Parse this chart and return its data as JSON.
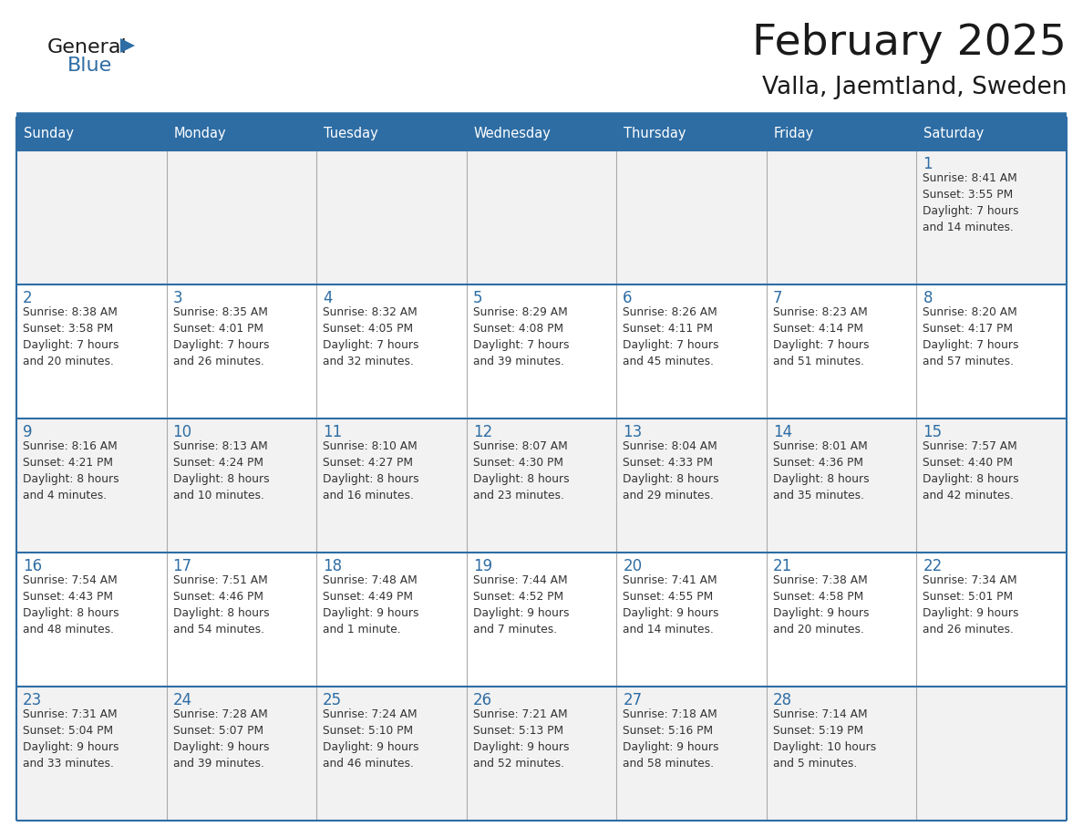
{
  "title": "February 2025",
  "subtitle": "Valla, Jaemtland, Sweden",
  "header_bg": "#2E6DA4",
  "header_text": "#FFFFFF",
  "day_names": [
    "Sunday",
    "Monday",
    "Tuesday",
    "Wednesday",
    "Thursday",
    "Friday",
    "Saturday"
  ],
  "row_bg_light": "#F2F2F2",
  "row_bg_white": "#FFFFFF",
  "cell_border_color": "#AAAAAA",
  "row_border_color": "#2E6DA4",
  "day_number_color": "#2E6DA4",
  "detail_color": "#333333",
  "calendar": [
    [
      null,
      null,
      null,
      null,
      null,
      null,
      {
        "day": 1,
        "sunrise": "8:41 AM",
        "sunset": "3:55 PM",
        "daylight": "7 hours\nand 14 minutes."
      }
    ],
    [
      {
        "day": 2,
        "sunrise": "8:38 AM",
        "sunset": "3:58 PM",
        "daylight": "7 hours\nand 20 minutes."
      },
      {
        "day": 3,
        "sunrise": "8:35 AM",
        "sunset": "4:01 PM",
        "daylight": "7 hours\nand 26 minutes."
      },
      {
        "day": 4,
        "sunrise": "8:32 AM",
        "sunset": "4:05 PM",
        "daylight": "7 hours\nand 32 minutes."
      },
      {
        "day": 5,
        "sunrise": "8:29 AM",
        "sunset": "4:08 PM",
        "daylight": "7 hours\nand 39 minutes."
      },
      {
        "day": 6,
        "sunrise": "8:26 AM",
        "sunset": "4:11 PM",
        "daylight": "7 hours\nand 45 minutes."
      },
      {
        "day": 7,
        "sunrise": "8:23 AM",
        "sunset": "4:14 PM",
        "daylight": "7 hours\nand 51 minutes."
      },
      {
        "day": 8,
        "sunrise": "8:20 AM",
        "sunset": "4:17 PM",
        "daylight": "7 hours\nand 57 minutes."
      }
    ],
    [
      {
        "day": 9,
        "sunrise": "8:16 AM",
        "sunset": "4:21 PM",
        "daylight": "8 hours\nand 4 minutes."
      },
      {
        "day": 10,
        "sunrise": "8:13 AM",
        "sunset": "4:24 PM",
        "daylight": "8 hours\nand 10 minutes."
      },
      {
        "day": 11,
        "sunrise": "8:10 AM",
        "sunset": "4:27 PM",
        "daylight": "8 hours\nand 16 minutes."
      },
      {
        "day": 12,
        "sunrise": "8:07 AM",
        "sunset": "4:30 PM",
        "daylight": "8 hours\nand 23 minutes."
      },
      {
        "day": 13,
        "sunrise": "8:04 AM",
        "sunset": "4:33 PM",
        "daylight": "8 hours\nand 29 minutes."
      },
      {
        "day": 14,
        "sunrise": "8:01 AM",
        "sunset": "4:36 PM",
        "daylight": "8 hours\nand 35 minutes."
      },
      {
        "day": 15,
        "sunrise": "7:57 AM",
        "sunset": "4:40 PM",
        "daylight": "8 hours\nand 42 minutes."
      }
    ],
    [
      {
        "day": 16,
        "sunrise": "7:54 AM",
        "sunset": "4:43 PM",
        "daylight": "8 hours\nand 48 minutes."
      },
      {
        "day": 17,
        "sunrise": "7:51 AM",
        "sunset": "4:46 PM",
        "daylight": "8 hours\nand 54 minutes."
      },
      {
        "day": 18,
        "sunrise": "7:48 AM",
        "sunset": "4:49 PM",
        "daylight": "9 hours\nand 1 minute."
      },
      {
        "day": 19,
        "sunrise": "7:44 AM",
        "sunset": "4:52 PM",
        "daylight": "9 hours\nand 7 minutes."
      },
      {
        "day": 20,
        "sunrise": "7:41 AM",
        "sunset": "4:55 PM",
        "daylight": "9 hours\nand 14 minutes."
      },
      {
        "day": 21,
        "sunrise": "7:38 AM",
        "sunset": "4:58 PM",
        "daylight": "9 hours\nand 20 minutes."
      },
      {
        "day": 22,
        "sunrise": "7:34 AM",
        "sunset": "5:01 PM",
        "daylight": "9 hours\nand 26 minutes."
      }
    ],
    [
      {
        "day": 23,
        "sunrise": "7:31 AM",
        "sunset": "5:04 PM",
        "daylight": "9 hours\nand 33 minutes."
      },
      {
        "day": 24,
        "sunrise": "7:28 AM",
        "sunset": "5:07 PM",
        "daylight": "9 hours\nand 39 minutes."
      },
      {
        "day": 25,
        "sunrise": "7:24 AM",
        "sunset": "5:10 PM",
        "daylight": "9 hours\nand 46 minutes."
      },
      {
        "day": 26,
        "sunrise": "7:21 AM",
        "sunset": "5:13 PM",
        "daylight": "9 hours\nand 52 minutes."
      },
      {
        "day": 27,
        "sunrise": "7:18 AM",
        "sunset": "5:16 PM",
        "daylight": "9 hours\nand 58 minutes."
      },
      {
        "day": 28,
        "sunrise": "7:14 AM",
        "sunset": "5:19 PM",
        "daylight": "10 hours\nand 5 minutes."
      },
      null
    ]
  ],
  "fig_width": 11.88,
  "fig_height": 9.18,
  "dpi": 100
}
